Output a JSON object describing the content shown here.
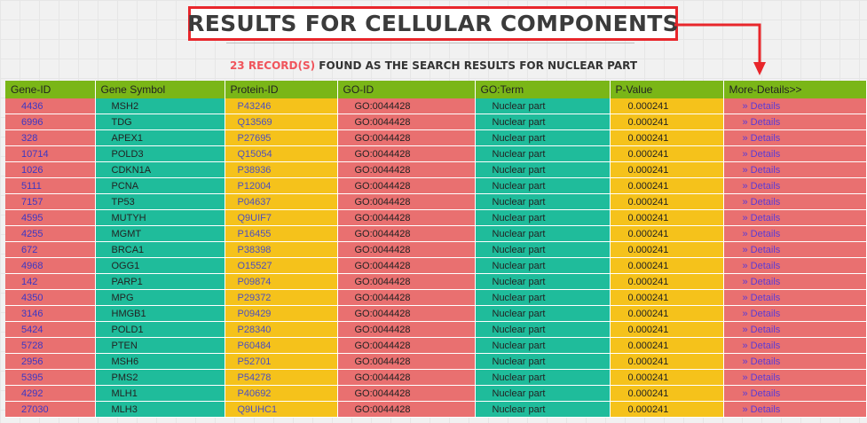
{
  "title": "RESULTS FOR CELLULAR COMPONENTS",
  "subtitle": {
    "count": "23 RECORD(S)",
    "text": " FOUND AS THE SEARCH RESULTS FOR NUCLEAR PART"
  },
  "colors": {
    "header_green": "#7ab617",
    "row_red": "#e97070",
    "row_teal": "#1fbc9b",
    "row_yellow": "#f5c21b",
    "highlight_red": "#e8262b"
  },
  "table": {
    "headers": [
      "Gene-ID",
      "Gene Symbol",
      "Protein-ID",
      "GO-ID",
      "GO:Term",
      "P-Value",
      "More-Details>>"
    ],
    "rows": [
      {
        "gene_id": "4436",
        "symbol": "MSH2",
        "protein_id": "P43246",
        "go_id": "GO:0044428",
        "go_term": "Nuclear part",
        "p_value": "0.000241",
        "details": "» Details"
      },
      {
        "gene_id": "6996",
        "symbol": "TDG",
        "protein_id": "Q13569",
        "go_id": "GO:0044428",
        "go_term": "Nuclear part",
        "p_value": "0.000241",
        "details": "» Details"
      },
      {
        "gene_id": "328",
        "symbol": "APEX1",
        "protein_id": "P27695",
        "go_id": "GO:0044428",
        "go_term": "Nuclear part",
        "p_value": "0.000241",
        "details": "» Details"
      },
      {
        "gene_id": "10714",
        "symbol": "POLD3",
        "protein_id": "Q15054",
        "go_id": "GO:0044428",
        "go_term": "Nuclear part",
        "p_value": "0.000241",
        "details": "» Details"
      },
      {
        "gene_id": "1026",
        "symbol": "CDKN1A",
        "protein_id": "P38936",
        "go_id": "GO:0044428",
        "go_term": "Nuclear part",
        "p_value": "0.000241",
        "details": "» Details"
      },
      {
        "gene_id": "5111",
        "symbol": "PCNA",
        "protein_id": "P12004",
        "go_id": "GO:0044428",
        "go_term": "Nuclear part",
        "p_value": "0.000241",
        "details": "» Details"
      },
      {
        "gene_id": "7157",
        "symbol": "TP53",
        "protein_id": "P04637",
        "go_id": "GO:0044428",
        "go_term": "Nuclear part",
        "p_value": "0.000241",
        "details": "» Details"
      },
      {
        "gene_id": "4595",
        "symbol": "MUTYH",
        "protein_id": "Q9UIF7",
        "go_id": "GO:0044428",
        "go_term": "Nuclear part",
        "p_value": "0.000241",
        "details": "» Details"
      },
      {
        "gene_id": "4255",
        "symbol": "MGMT",
        "protein_id": "P16455",
        "go_id": "GO:0044428",
        "go_term": "Nuclear part",
        "p_value": "0.000241",
        "details": "» Details"
      },
      {
        "gene_id": "672",
        "symbol": "BRCA1",
        "protein_id": "P38398",
        "go_id": "GO:0044428",
        "go_term": "Nuclear part",
        "p_value": "0.000241",
        "details": "» Details"
      },
      {
        "gene_id": "4968",
        "symbol": "OGG1",
        "protein_id": "O15527",
        "go_id": "GO:0044428",
        "go_term": "Nuclear part",
        "p_value": "0.000241",
        "details": "» Details"
      },
      {
        "gene_id": "142",
        "symbol": "PARP1",
        "protein_id": "P09874",
        "go_id": "GO:0044428",
        "go_term": "Nuclear part",
        "p_value": "0.000241",
        "details": "» Details"
      },
      {
        "gene_id": "4350",
        "symbol": "MPG",
        "protein_id": "P29372",
        "go_id": "GO:0044428",
        "go_term": "Nuclear part",
        "p_value": "0.000241",
        "details": "» Details"
      },
      {
        "gene_id": "3146",
        "symbol": "HMGB1",
        "protein_id": "P09429",
        "go_id": "GO:0044428",
        "go_term": "Nuclear part",
        "p_value": "0.000241",
        "details": "» Details"
      },
      {
        "gene_id": "5424",
        "symbol": "POLD1",
        "protein_id": "P28340",
        "go_id": "GO:0044428",
        "go_term": "Nuclear part",
        "p_value": "0.000241",
        "details": "» Details"
      },
      {
        "gene_id": "5728",
        "symbol": "PTEN",
        "protein_id": "P60484",
        "go_id": "GO:0044428",
        "go_term": "Nuclear part",
        "p_value": "0.000241",
        "details": "» Details"
      },
      {
        "gene_id": "2956",
        "symbol": "MSH6",
        "protein_id": "P52701",
        "go_id": "GO:0044428",
        "go_term": "Nuclear part",
        "p_value": "0.000241",
        "details": "» Details"
      },
      {
        "gene_id": "5395",
        "symbol": "PMS2",
        "protein_id": "P54278",
        "go_id": "GO:0044428",
        "go_term": "Nuclear part",
        "p_value": "0.000241",
        "details": "» Details"
      },
      {
        "gene_id": "4292",
        "symbol": "MLH1",
        "protein_id": "P40692",
        "go_id": "GO:0044428",
        "go_term": "Nuclear part",
        "p_value": "0.000241",
        "details": "» Details"
      },
      {
        "gene_id": "27030",
        "symbol": "MLH3",
        "protein_id": "Q9UHC1",
        "go_id": "GO:0044428",
        "go_term": "Nuclear part",
        "p_value": "0.000241",
        "details": "» Details"
      }
    ]
  }
}
